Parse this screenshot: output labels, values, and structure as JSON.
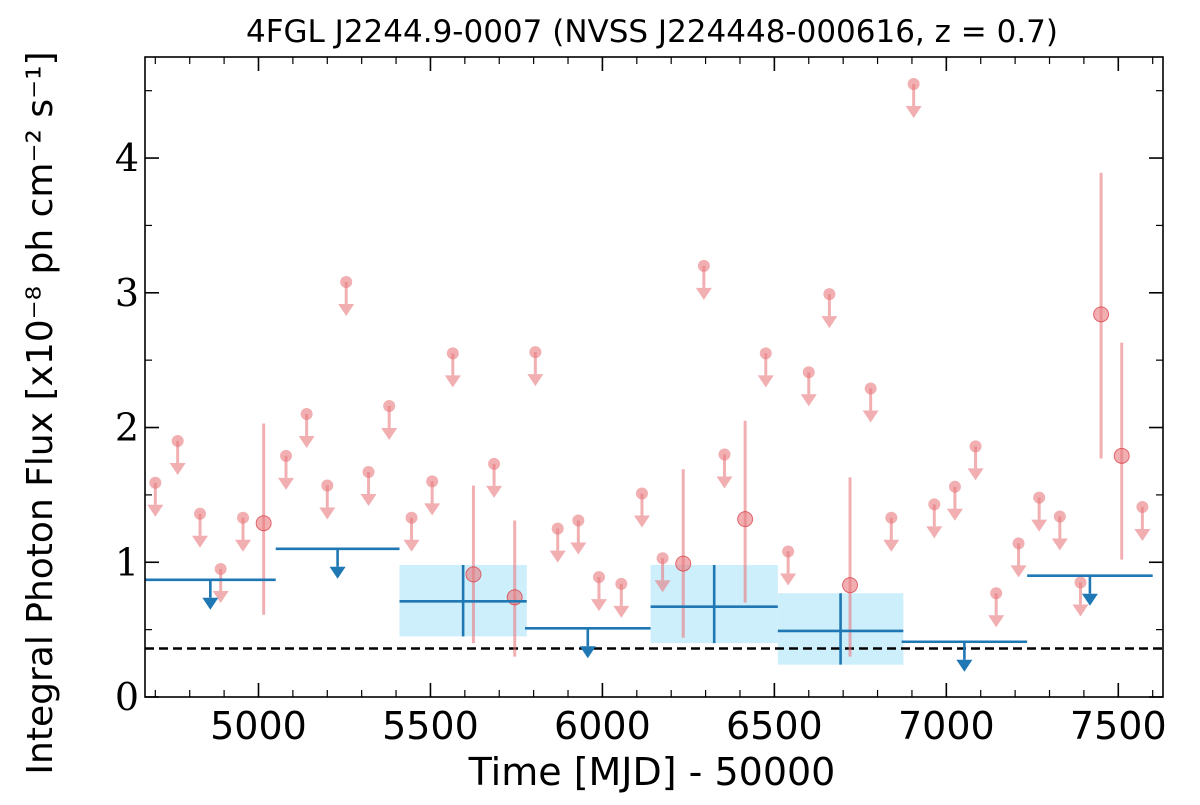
{
  "chart_data": {
    "type": "scatter",
    "title": "4FGL J2244.9-0007 (NVSS J224448-000616, z = 0.7)",
    "xlabel": "Time [MJD] - 50000",
    "ylabel": "Integral Photon Flux [x10⁻⁸ ph cm⁻² s⁻¹]",
    "xlim": [
      4670,
      7630
    ],
    "ylim": [
      0,
      4.75
    ],
    "xticks": [
      5000,
      5500,
      6000,
      6500,
      7000,
      7500
    ],
    "yticks": [
      0,
      1,
      2,
      3,
      4
    ],
    "reference_line": {
      "y": 0.36,
      "style": "dashed",
      "color": "#000000"
    },
    "colors": {
      "short_bins": "#e8797f",
      "long_bins": "#1f77b4",
      "band": "#cdeefb"
    },
    "series": [
      {
        "kind": "short-timescale",
        "upper_limits": [
          {
            "x": 4700,
            "y": 1.59
          },
          {
            "x": 4765,
            "y": 1.9
          },
          {
            "x": 4830,
            "y": 1.36
          },
          {
            "x": 4890,
            "y": 0.95
          },
          {
            "x": 4955,
            "y": 1.33
          },
          {
            "x": 5080,
            "y": 1.79
          },
          {
            "x": 5140,
            "y": 2.1
          },
          {
            "x": 5200,
            "y": 1.57
          },
          {
            "x": 5255,
            "y": 3.08
          },
          {
            "x": 5320,
            "y": 1.67
          },
          {
            "x": 5380,
            "y": 2.16
          },
          {
            "x": 5445,
            "y": 1.33
          },
          {
            "x": 5505,
            "y": 1.6
          },
          {
            "x": 5565,
            "y": 2.55
          },
          {
            "x": 5685,
            "y": 1.73
          },
          {
            "x": 5805,
            "y": 2.56
          },
          {
            "x": 5870,
            "y": 1.25
          },
          {
            "x": 5930,
            "y": 1.31
          },
          {
            "x": 5990,
            "y": 0.89
          },
          {
            "x": 6055,
            "y": 0.84
          },
          {
            "x": 6115,
            "y": 1.51
          },
          {
            "x": 6175,
            "y": 1.03
          },
          {
            "x": 6295,
            "y": 3.2
          },
          {
            "x": 6355,
            "y": 1.8
          },
          {
            "x": 6475,
            "y": 2.55
          },
          {
            "x": 6540,
            "y": 1.08
          },
          {
            "x": 6600,
            "y": 2.41
          },
          {
            "x": 6660,
            "y": 2.99
          },
          {
            "x": 6780,
            "y": 2.29
          },
          {
            "x": 6840,
            "y": 1.33
          },
          {
            "x": 6905,
            "y": 4.55
          },
          {
            "x": 6965,
            "y": 1.43
          },
          {
            "x": 7025,
            "y": 1.56
          },
          {
            "x": 7085,
            "y": 1.86
          },
          {
            "x": 7145,
            "y": 0.77
          },
          {
            "x": 7210,
            "y": 1.14
          },
          {
            "x": 7270,
            "y": 1.48
          },
          {
            "x": 7330,
            "y": 1.34
          },
          {
            "x": 7390,
            "y": 0.85
          },
          {
            "x": 7570,
            "y": 1.41
          }
        ],
        "detections": [
          {
            "x": 5015,
            "y": 1.29,
            "ylo": 0.61,
            "yhi": 2.03
          },
          {
            "x": 5625,
            "y": 0.91,
            "ylo": 0.4,
            "yhi": 1.57
          },
          {
            "x": 5745,
            "y": 0.74,
            "ylo": 0.3,
            "yhi": 1.31
          },
          {
            "x": 6235,
            "y": 0.99,
            "ylo": 0.44,
            "yhi": 1.69
          },
          {
            "x": 6415,
            "y": 1.32,
            "ylo": 0.7,
            "yhi": 2.05
          },
          {
            "x": 6720,
            "y": 0.83,
            "ylo": 0.3,
            "yhi": 1.63
          },
          {
            "x": 7450,
            "y": 2.84,
            "ylo": 1.77,
            "yhi": 3.89
          },
          {
            "x": 7510,
            "y": 1.79,
            "ylo": 1.02,
            "yhi": 2.63
          }
        ]
      },
      {
        "kind": "long-timescale",
        "upper_limits": [
          {
            "x0": 4670,
            "x1": 5050,
            "y": 0.87
          },
          {
            "x0": 5050,
            "x1": 5410,
            "y": 1.1
          },
          {
            "x0": 5775,
            "x1": 6140,
            "y": 0.51
          },
          {
            "x0": 6870,
            "x1": 7235,
            "y": 0.41
          },
          {
            "x0": 7235,
            "x1": 7600,
            "y": 0.9
          }
        ],
        "detections": [
          {
            "x0": 5410,
            "x1": 5780,
            "y": 0.71,
            "ylo": 0.45,
            "yhi": 0.98
          },
          {
            "x0": 6140,
            "x1": 6510,
            "y": 0.67,
            "ylo": 0.4,
            "yhi": 0.98
          },
          {
            "x0": 6510,
            "x1": 6875,
            "y": 0.49,
            "ylo": 0.24,
            "yhi": 0.77
          }
        ]
      }
    ]
  }
}
